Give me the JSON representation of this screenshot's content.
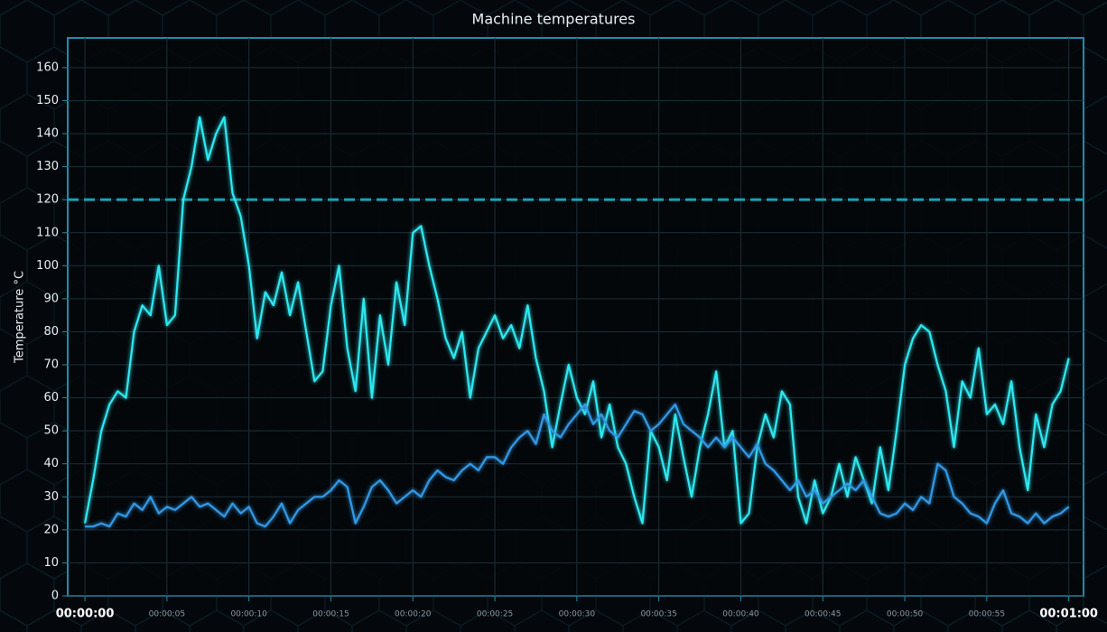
{
  "chart_data": {
    "type": "line",
    "title": "Machine temperatures",
    "y_label": "Temperature °C",
    "x": [
      0,
      0.5,
      1,
      1.5,
      2,
      2.5,
      3,
      3.5,
      4,
      4.5,
      5,
      5.5,
      6,
      6.5,
      7,
      7.5,
      8,
      8.5,
      9,
      9.5,
      10,
      10.5,
      11,
      11.5,
      12,
      12.5,
      13,
      13.5,
      14,
      14.5,
      15,
      15.5,
      16,
      16.5,
      17,
      17.5,
      18,
      18.5,
      19,
      19.5,
      20,
      20.5,
      21,
      21.5,
      22,
      22.5,
      23,
      23.5,
      24,
      24.5,
      25,
      25.5,
      26,
      26.5,
      27,
      27.5,
      28,
      28.5,
      29,
      29.5,
      30,
      30.5,
      31,
      31.5,
      32,
      32.5,
      33,
      33.5,
      34,
      34.5,
      35,
      35.5,
      36,
      36.5,
      37,
      37.5,
      38,
      38.5,
      39,
      39.5,
      40,
      40.5,
      41,
      41.5,
      42,
      42.5,
      43,
      43.5,
      44,
      44.5,
      45,
      45.5,
      46,
      46.5,
      47,
      47.5,
      48,
      48.5,
      49,
      49.5,
      50,
      50.5,
      51,
      51.5,
      52,
      52.5,
      53,
      53.5,
      54,
      54.5,
      55,
      55.5,
      56,
      56.5,
      57,
      57.5,
      58,
      58.5,
      59,
      59.5,
      60
    ],
    "series": [
      {
        "color": "#2ee8f0",
        "values": [
          22,
          35,
          50,
          58,
          62,
          60,
          80,
          88,
          85,
          100,
          82,
          85,
          120,
          130,
          145,
          132,
          140,
          145,
          122,
          115,
          100,
          78,
          92,
          88,
          98,
          85,
          95,
          80,
          65,
          68,
          88,
          100,
          75,
          62,
          90,
          60,
          85,
          70,
          95,
          82,
          110,
          112,
          100,
          90,
          78,
          72,
          80,
          60,
          75,
          80,
          85,
          78,
          82,
          75,
          88,
          72,
          62,
          45,
          58,
          70,
          60,
          55,
          65,
          48,
          58,
          45,
          40,
          30,
          22,
          50,
          45,
          35,
          55,
          42,
          30,
          45,
          55,
          68,
          45,
          50,
          22,
          25,
          45,
          55,
          48,
          62,
          58,
          30,
          22,
          35,
          25,
          30,
          40,
          30,
          42,
          35,
          28,
          45,
          32,
          50,
          70,
          78,
          82,
          80,
          70,
          62,
          45,
          65,
          60,
          75,
          55,
          58,
          52,
          65,
          45,
          32,
          55,
          45,
          58,
          62,
          72
        ]
      },
      {
        "color": "#3399e6",
        "values": [
          21,
          21,
          22,
          21,
          25,
          24,
          28,
          26,
          30,
          25,
          27,
          26,
          28,
          30,
          27,
          28,
          26,
          24,
          28,
          25,
          27,
          22,
          21,
          24,
          28,
          22,
          26,
          28,
          30,
          30,
          32,
          35,
          33,
          22,
          27,
          33,
          35,
          32,
          28,
          30,
          32,
          30,
          35,
          38,
          36,
          35,
          38,
          40,
          38,
          42,
          42,
          40,
          45,
          48,
          50,
          46,
          55,
          50,
          48,
          52,
          55,
          58,
          52,
          55,
          50,
          48,
          52,
          56,
          55,
          50,
          52,
          55,
          58,
          52,
          50,
          48,
          45,
          48,
          45,
          48,
          45,
          42,
          46,
          40,
          38,
          35,
          32,
          35,
          30,
          32,
          28,
          30,
          32,
          34,
          32,
          35,
          30,
          25,
          24,
          25,
          28,
          26,
          30,
          28,
          40,
          38,
          30,
          28,
          25,
          24,
          22,
          28,
          32,
          25,
          24,
          22,
          25,
          22,
          24,
          25,
          27
        ]
      }
    ],
    "threshold": 120,
    "xlim": [
      -1.05,
      60.9
    ],
    "ylim": [
      0,
      169
    ],
    "xticks": [
      {
        "value": 0,
        "label": "00:00:00"
      },
      {
        "value": 5,
        "label": "00:00:05"
      },
      {
        "value": 10,
        "label": "00:00:10"
      },
      {
        "value": 15,
        "label": "00:00:15"
      },
      {
        "value": 20,
        "label": "00:00:20"
      },
      {
        "value": 25,
        "label": "00:00:25"
      },
      {
        "value": 30,
        "label": "00:00:30"
      },
      {
        "value": 35,
        "label": "00:00:35"
      },
      {
        "value": 40,
        "label": "00:00:40"
      },
      {
        "value": 45,
        "label": "00:00:45"
      },
      {
        "value": 50,
        "label": "00:00:50"
      },
      {
        "value": 55,
        "label": "00:00:55"
      },
      {
        "value": 60,
        "label": "00:01:00"
      }
    ],
    "yticks": [
      0,
      10,
      20,
      30,
      40,
      50,
      60,
      70,
      80,
      90,
      100,
      110,
      120,
      130,
      140,
      150,
      160
    ],
    "grid": true
  }
}
